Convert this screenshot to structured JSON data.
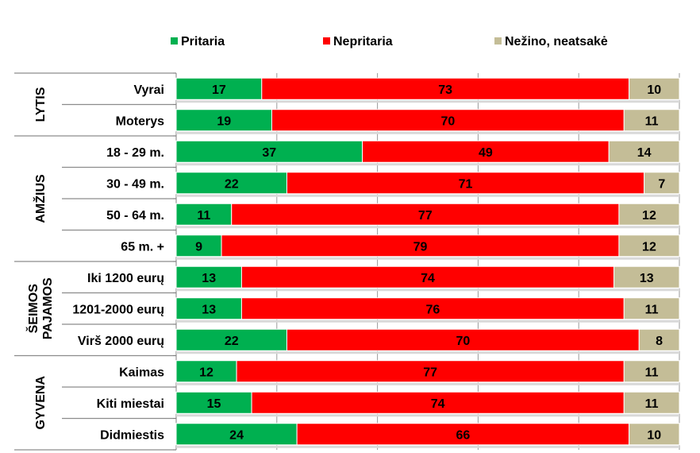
{
  "chart_data": {
    "type": "bar",
    "orientation": "horizontal",
    "stacked": true,
    "xlim": [
      0,
      100
    ],
    "legend_position": "top",
    "series": [
      {
        "name": "Pritaria",
        "color": "#00b050",
        "values": [
          17,
          19,
          37,
          22,
          11,
          9,
          13,
          13,
          22,
          12,
          15,
          24
        ]
      },
      {
        "name": "Nepritaria",
        "color": "#ff0000",
        "values": [
          73,
          70,
          49,
          71,
          77,
          79,
          74,
          76,
          70,
          77,
          74,
          66
        ]
      },
      {
        "name": "Nežino, neatsakė",
        "color": "#c4bd97",
        "values": [
          10,
          11,
          14,
          7,
          12,
          12,
          13,
          11,
          8,
          11,
          11,
          10
        ]
      }
    ],
    "categories": [
      "Vyrai",
      "Moterys",
      "18 - 29 m.",
      "30 - 49 m.",
      "50 - 64 m.",
      "65 m. +",
      "Iki 1200 eurų",
      "1201-2000 eurų",
      "Virš 2000 eurų",
      "Kaimas",
      "Kiti miestai",
      "Didmiestis"
    ],
    "groups": [
      {
        "label_lines": [
          "LYTIS"
        ],
        "count": 2
      },
      {
        "label_lines": [
          "AMŽIUS"
        ],
        "count": 4
      },
      {
        "label_lines": [
          "ŠEIMOS",
          "PAJAMOS"
        ],
        "count": 3
      },
      {
        "label_lines": [
          "GYVENA"
        ],
        "count": 3
      }
    ]
  }
}
